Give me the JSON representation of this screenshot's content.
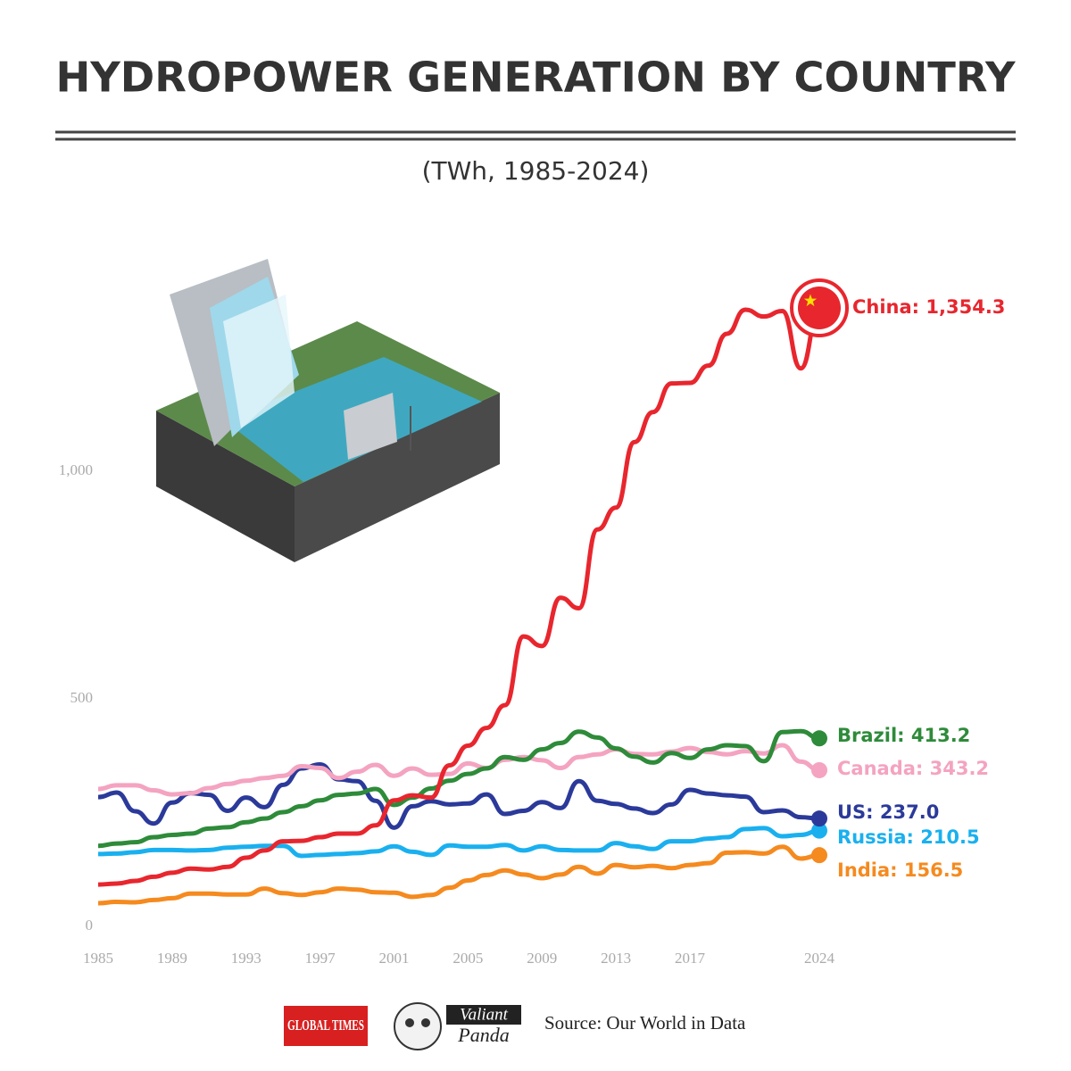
{
  "chart_data": {
    "type": "line",
    "title": "HYDROPOWER GENERATION BY COUNTRY",
    "subtitle": "(TWh, 1985-2024)",
    "source": "Source: Our World in Data",
    "logos": [
      "GLOBAL TIMES",
      "Valiant",
      "Panda"
    ],
    "x": [
      1985,
      1986,
      1987,
      1988,
      1989,
      1990,
      1991,
      1992,
      1993,
      1994,
      1995,
      1996,
      1997,
      1998,
      1999,
      2000,
      2001,
      2002,
      2003,
      2004,
      2005,
      2006,
      2007,
      2008,
      2009,
      2010,
      2011,
      2012,
      2013,
      2014,
      2015,
      2016,
      2017,
      2018,
      2019,
      2020,
      2021,
      2022,
      2023,
      2024
    ],
    "xlim": [
      1985,
      2024
    ],
    "xticks": [
      1985,
      1989,
      1993,
      1997,
      2001,
      2005,
      2009,
      2013,
      2017,
      2024
    ],
    "ylim": [
      0,
      1450
    ],
    "yticks": [
      0,
      500,
      {
        "value": 1000,
        "label": "1,000"
      }
    ],
    "series": [
      {
        "label": "China: 1,354.3",
        "color": "#e8262e",
        "values": [
          92,
          94,
          100,
          109,
          118,
          127,
          125,
          131,
          151,
          167,
          187,
          188,
          196,
          204,
          204,
          222,
          277,
          288,
          283,
          354,
          397,
          436,
          486,
          637,
          616,
          722,
          699,
          872,
          920,
          1064,
          1130,
          1193,
          1194,
          1232,
          1302,
          1355,
          1340,
          1352,
          1226,
          1354.3
        ]
      },
      {
        "label": "Brazil: 413.2",
        "color": "#2e8b3a",
        "values": [
          177,
          182,
          185,
          196,
          201,
          204,
          215,
          218,
          229,
          237,
          251,
          264,
          277,
          289,
          292,
          302,
          267,
          283,
          303,
          320,
          335,
          347,
          372,
          366,
          389,
          403,
          428,
          415,
          391,
          373,
          360,
          381,
          370,
          389,
          398,
          396,
          363,
          427,
          429,
          413.2
        ]
      },
      {
        "label": "Canada: 343.2",
        "color": "#f4a3c0",
        "values": [
          302,
          310,
          310,
          299,
          290,
          293,
          304,
          313,
          320,
          326,
          331,
          352,
          348,
          326,
          340,
          355,
          331,
          347,
          333,
          335,
          358,
          348,
          366,
          372,
          365,
          348,
          372,
          378,
          389,
          379,
          378,
          384,
          392,
          383,
          378,
          385,
          380,
          398,
          362,
          343.2
        ]
      },
      {
        "label": "US: 237.0",
        "color": "#2b3a9a",
        "values": [
          284,
          294,
          253,
          226,
          272,
          293,
          289,
          254,
          283,
          262,
          311,
          347,
          356,
          323,
          319,
          276,
          217,
          264,
          275,
          268,
          270,
          290,
          247,
          254,
          273,
          260,
          319,
          276,
          269,
          259,
          249,
          268,
          300,
          292,
          288,
          285,
          251,
          255,
          240,
          237.0
        ]
      },
      {
        "label": "Russia: 210.5",
        "color": "#1ab0ef",
        "values": [
          159,
          160,
          163,
          168,
          168,
          167,
          168,
          173,
          175,
          177,
          177,
          155,
          157,
          159,
          161,
          165,
          176,
          164,
          157,
          178,
          175,
          175,
          179,
          167,
          176,
          168,
          167,
          167,
          183,
          176,
          170,
          187,
          187,
          193,
          196,
          214,
          216,
          198,
          201,
          210.5
        ]
      },
      {
        "label": "India: 156.5",
        "color": "#f58a1f",
        "values": [
          51,
          54,
          53,
          58,
          62,
          72,
          72,
          70,
          70,
          83,
          73,
          69,
          75,
          83,
          81,
          75,
          74,
          65,
          69,
          85,
          101,
          113,
          123,
          114,
          106,
          114,
          131,
          116,
          135,
          130,
          133,
          128,
          135,
          139,
          162,
          163,
          160,
          175,
          149,
          156.5
        ]
      }
    ]
  }
}
